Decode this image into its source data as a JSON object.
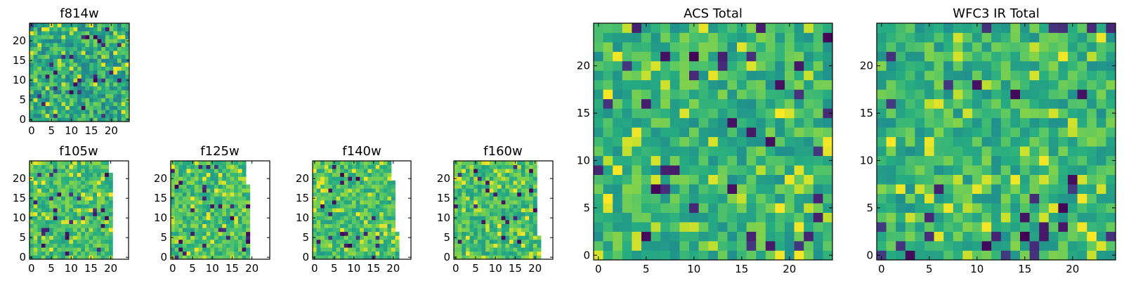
{
  "chart_data": [
    {
      "type": "heatmap",
      "title": "f814w",
      "nx": 25,
      "ny": 25,
      "xlim": [
        0,
        25
      ],
      "ylim": [
        0,
        25
      ],
      "xticks": [
        "0",
        "5",
        "10",
        "15",
        "20"
      ],
      "yticks": [
        "0",
        "5",
        "10",
        "15",
        "20"
      ],
      "colormap": "viridis",
      "value_range": [
        0,
        1
      ],
      "seed": 11,
      "mean": 0.62,
      "spread": 0.2,
      "valid_cols": []
    },
    {
      "type": "heatmap",
      "title": "f105w",
      "nx": 25,
      "ny": 25,
      "xlim": [
        0,
        25
      ],
      "ylim": [
        0,
        25
      ],
      "xticks": [
        "0",
        "5",
        "10",
        "15",
        "20"
      ],
      "yticks": [
        "0",
        "5",
        "10",
        "15",
        "20"
      ],
      "colormap": "viridis",
      "value_range": [
        0,
        1
      ],
      "seed": 23,
      "mean": 0.7,
      "spread": 0.14,
      "valid_cols": [
        21,
        21,
        21,
        21,
        21,
        21,
        21,
        21,
        21,
        21,
        21,
        21,
        21,
        21,
        21,
        21,
        21,
        21,
        21,
        21,
        21,
        21,
        20,
        20,
        20
      ]
    },
    {
      "type": "heatmap",
      "title": "f125w",
      "nx": 25,
      "ny": 25,
      "xlim": [
        0,
        25
      ],
      "ylim": [
        0,
        25
      ],
      "xticks": [
        "0",
        "5",
        "10",
        "15",
        "20"
      ],
      "yticks": [
        "0",
        "5",
        "10",
        "15",
        "20"
      ],
      "colormap": "viridis",
      "value_range": [
        0,
        1
      ],
      "seed": 37,
      "mean": 0.7,
      "spread": 0.15,
      "valid_cols": [
        20,
        20,
        20,
        20,
        20,
        20,
        20,
        20,
        20,
        20,
        20,
        20,
        20,
        20,
        20,
        20,
        20,
        20,
        20,
        19,
        19,
        19,
        19,
        19,
        19
      ]
    },
    {
      "type": "heatmap",
      "title": "f140w",
      "nx": 25,
      "ny": 25,
      "xlim": [
        0,
        25
      ],
      "ylim": [
        0,
        25
      ],
      "xticks": [
        "0",
        "5",
        "10",
        "15",
        "20"
      ],
      "yticks": [
        "0",
        "5",
        "10",
        "15",
        "20"
      ],
      "colormap": "viridis",
      "value_range": [
        0,
        1
      ],
      "seed": 41,
      "mean": 0.7,
      "spread": 0.15,
      "valid_cols": [
        22,
        22,
        22,
        22,
        22,
        22,
        22,
        21,
        21,
        21,
        21,
        21,
        21,
        21,
        21,
        21,
        21,
        21,
        21,
        21,
        20,
        20,
        20,
        20,
        20
      ]
    },
    {
      "type": "heatmap",
      "title": "f160w",
      "nx": 25,
      "ny": 25,
      "xlim": [
        0,
        25
      ],
      "ylim": [
        0,
        25
      ],
      "xticks": [
        "0",
        "5",
        "10",
        "15",
        "20"
      ],
      "yticks": [
        "0",
        "5",
        "10",
        "15",
        "20"
      ],
      "colormap": "viridis",
      "value_range": [
        0,
        1
      ],
      "seed": 53,
      "mean": 0.7,
      "spread": 0.15,
      "valid_cols": [
        22,
        22,
        22,
        22,
        22,
        22,
        21,
        21,
        21,
        21,
        21,
        21,
        21,
        21,
        21,
        21,
        21,
        21,
        21,
        21,
        21,
        21,
        21,
        21,
        21
      ]
    },
    {
      "type": "heatmap",
      "title": "ACS Total",
      "nx": 25,
      "ny": 25,
      "xlim": [
        0,
        25
      ],
      "ylim": [
        0,
        25
      ],
      "xticks": [
        "0",
        "5",
        "10",
        "15",
        "20"
      ],
      "yticks": [
        "0",
        "5",
        "10",
        "15",
        "20"
      ],
      "colormap": "viridis",
      "value_range": [
        0,
        1
      ],
      "seed": 67,
      "mean": 0.66,
      "spread": 0.16,
      "valid_cols": []
    },
    {
      "type": "heatmap",
      "title": "WFC3 IR Total",
      "nx": 25,
      "ny": 25,
      "xlim": [
        0,
        25
      ],
      "ylim": [
        0,
        25
      ],
      "xticks": [
        "0",
        "5",
        "10",
        "15",
        "20"
      ],
      "yticks": [
        "0",
        "5",
        "10",
        "15",
        "20"
      ],
      "colormap": "viridis",
      "value_range": [
        0,
        1
      ],
      "seed": 79,
      "mean": 0.66,
      "spread": 0.16,
      "valid_cols": []
    }
  ]
}
